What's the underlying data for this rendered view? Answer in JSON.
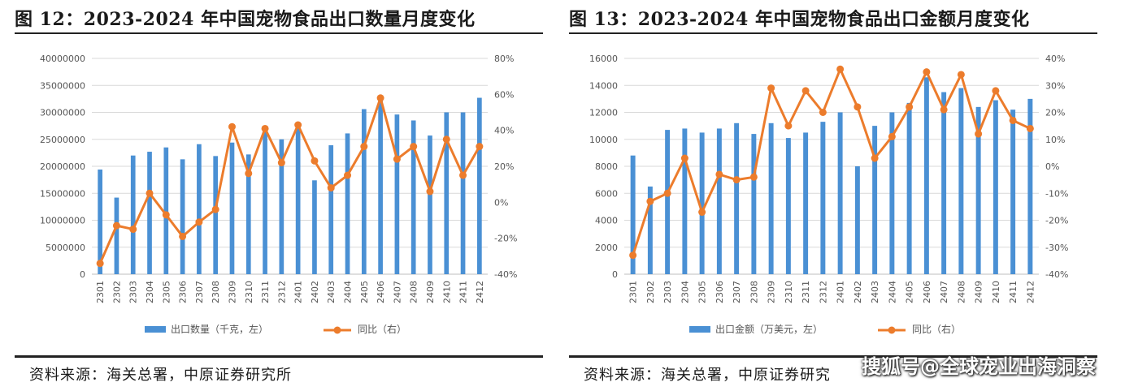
{
  "left_panel": {
    "title": "图 12：2023-2024 年中国宠物食品出口数量月度变化",
    "source": "资料来源：海关总署，中原证券研究所"
  },
  "right_panel": {
    "title": "图 13：2023-2024 年中国宠物食品出口金额月度变化",
    "source": "资料来源：海关总署，中原证券研究所"
  },
  "watermark": "搜狐号@全球宠业出海洞察",
  "colors": {
    "bar": "#4a90d4",
    "line": "#ec7c2c"
  },
  "chart_data": [
    {
      "type": "bar",
      "combo": "bar+line",
      "categories": [
        "2301",
        "2302",
        "2303",
        "2304",
        "2305",
        "2306",
        "2307",
        "2308",
        "2309",
        "2310",
        "2311",
        "2312",
        "2401",
        "2402",
        "2403",
        "2404",
        "2405",
        "2406",
        "2407",
        "2408",
        "2409",
        "2410",
        "2411",
        "2412"
      ],
      "series": [
        {
          "name": "出口数量（千克，左）",
          "type": "bar",
          "axis": "left",
          "values": [
            19400000,
            14200000,
            22000000,
            22700000,
            23500000,
            21300000,
            24100000,
            21900000,
            24400000,
            22200000,
            26800000,
            25000000,
            28200000,
            17400000,
            23900000,
            26100000,
            30600000,
            32700000,
            29600000,
            28500000,
            25700000,
            30000000,
            30000000,
            32700000
          ]
        },
        {
          "name": "同比（右）",
          "type": "line",
          "axis": "right",
          "values": [
            -34,
            -13,
            -15,
            5,
            -7,
            -19,
            -11,
            -4,
            42,
            16,
            41,
            22,
            43,
            23,
            8,
            15,
            31,
            58,
            24,
            31,
            6,
            35,
            15,
            31
          ]
        }
      ],
      "y_left": {
        "min": 0,
        "max": 40000000,
        "ticks": [
          "0",
          "5000000",
          "10000000",
          "15000000",
          "20000000",
          "25000000",
          "30000000",
          "35000000",
          "40000000"
        ]
      },
      "y_right": {
        "min": -40,
        "max": 80,
        "ticks": [
          "-40%",
          "-20%",
          "0%",
          "20%",
          "40%",
          "60%",
          "80%"
        ]
      },
      "grid": true,
      "legend": "bottom"
    },
    {
      "type": "bar",
      "combo": "bar+line",
      "categories": [
        "2301",
        "2302",
        "2303",
        "2304",
        "2305",
        "2306",
        "2307",
        "2308",
        "2309",
        "2310",
        "2311",
        "2312",
        "2401",
        "2402",
        "2403",
        "2404",
        "2405",
        "2406",
        "2407",
        "2408",
        "2409",
        "2410",
        "2411",
        "2412"
      ],
      "series": [
        {
          "name": "出口金额（万美元，左）",
          "type": "bar",
          "axis": "left",
          "values": [
            8800,
            6500,
            10700,
            10800,
            10500,
            10800,
            11200,
            10400,
            11200,
            10100,
            10500,
            11300,
            12000,
            8000,
            11000,
            12000,
            12700,
            14600,
            13500,
            13800,
            12400,
            12900,
            12200,
            13000
          ]
        },
        {
          "name": "同比（右）",
          "type": "line",
          "axis": "right",
          "values": [
            -33,
            -13,
            -10,
            3,
            -17,
            -3,
            -5,
            -4,
            29,
            15,
            28,
            20,
            36,
            22,
            3,
            11,
            22,
            35,
            21,
            34,
            12,
            28,
            17,
            14
          ]
        }
      ],
      "y_left": {
        "min": 0,
        "max": 16000,
        "ticks": [
          "0",
          "2000",
          "4000",
          "6000",
          "8000",
          "10000",
          "12000",
          "14000",
          "16000"
        ]
      },
      "y_right": {
        "min": -40,
        "max": 40,
        "ticks": [
          "-40%",
          "-30%",
          "-20%",
          "-10%",
          "0%",
          "10%",
          "20%",
          "30%",
          "40%"
        ]
      },
      "grid": true,
      "legend": "bottom"
    }
  ]
}
